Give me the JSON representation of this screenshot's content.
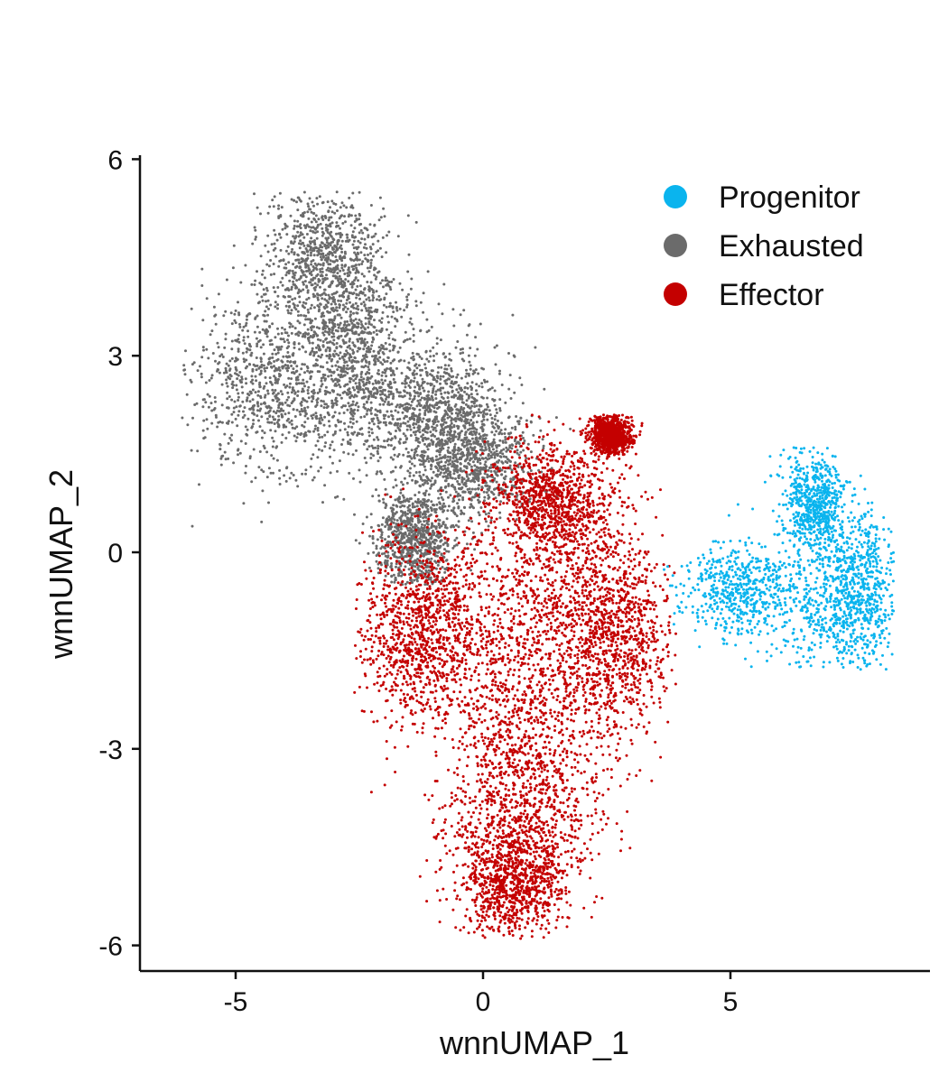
{
  "chart_data": {
    "type": "scatter",
    "title": "",
    "xlabel": "wnnUMAP_1",
    "ylabel": "wnnUMAP_2",
    "xlim": [
      -6.9,
      9.0
    ],
    "ylim": [
      -6.9,
      6.2
    ],
    "x_ticks": [
      -5,
      0,
      5
    ],
    "y_ticks": [
      6,
      3,
      0,
      -3,
      -6
    ],
    "x_tick_labels": [
      "-5",
      "0",
      "5"
    ],
    "y_tick_labels": [
      "6",
      "3",
      "0",
      "-3",
      "-6"
    ],
    "grid": false,
    "legend_position": "top-right",
    "series": [
      {
        "name": "Progenitor",
        "color": "#0ab4ee",
        "approx_points": 2200,
        "clusters": [
          {
            "center": [
              6.9,
              -0.5
            ],
            "spread": [
              0.6,
              0.8
            ]
          },
          {
            "center": [
              7.6,
              -0.6
            ],
            "spread": [
              0.4,
              0.6
            ]
          },
          {
            "center": [
              6.7,
              0.8
            ],
            "spread": [
              0.3,
              0.35
            ]
          },
          {
            "center": [
              5.2,
              -0.6
            ],
            "spread": [
              0.6,
              0.35
            ]
          }
        ],
        "range_x": [
          3.6,
          8.3
        ],
        "range_y": [
          -1.8,
          1.6
        ]
      },
      {
        "name": "Exhausted",
        "color": "#6b6b6b",
        "approx_points": 5200,
        "clusters": [
          {
            "center": [
              -4.3,
              2.5
            ],
            "spread": [
              0.8,
              0.7
            ]
          },
          {
            "center": [
              -3.2,
              4.5
            ],
            "spread": [
              0.6,
              0.6
            ]
          },
          {
            "center": [
              -2.6,
              3.0
            ],
            "spread": [
              0.6,
              0.7
            ]
          },
          {
            "center": [
              -1.0,
              2.2
            ],
            "spread": [
              0.7,
              0.5
            ]
          },
          {
            "center": [
              -0.2,
              1.4
            ],
            "spread": [
              0.6,
              0.45
            ]
          },
          {
            "center": [
              -1.4,
              0.2
            ],
            "spread": [
              0.4,
              0.4
            ]
          }
        ],
        "range_x": [
          -6.1,
          2.6
        ],
        "range_y": [
          -0.5,
          5.5
        ]
      },
      {
        "name": "Effector",
        "color": "#c40000",
        "approx_points": 7200,
        "clusters": [
          {
            "center": [
              0.8,
              -1.2
            ],
            "spread": [
              1.3,
              0.9
            ]
          },
          {
            "center": [
              -1.3,
              -1.2
            ],
            "spread": [
              0.6,
              0.7
            ]
          },
          {
            "center": [
              2.6,
              -1.2
            ],
            "spread": [
              0.6,
              0.8
            ]
          },
          {
            "center": [
              0.8,
              -3.5
            ],
            "spread": [
              0.8,
              0.8
            ]
          },
          {
            "center": [
              0.6,
              -5.0
            ],
            "spread": [
              0.55,
              0.45
            ]
          },
          {
            "center": [
              1.4,
              0.8
            ],
            "spread": [
              0.6,
              0.45
            ]
          },
          {
            "center": [
              2.6,
              1.8
            ],
            "spread": [
              0.2,
              0.15
            ]
          }
        ],
        "range_x": [
          -2.6,
          3.9
        ],
        "range_y": [
          -5.9,
          2.1
        ]
      }
    ]
  }
}
